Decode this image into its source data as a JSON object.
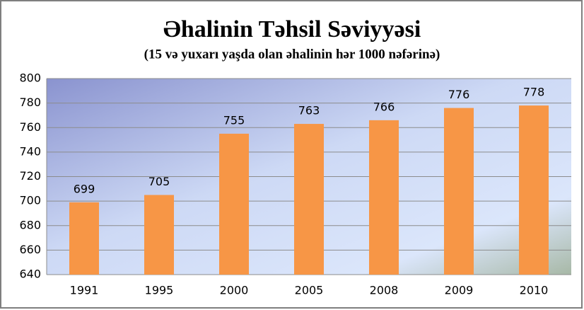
{
  "chart_data": {
    "type": "bar",
    "title": "Əhalinin Təhsil Səviyyəsi",
    "subtitle": "(15 və yuxarı yaşda olan əhalinin hər 1000 nəfərinə)",
    "categories": [
      "1991",
      "1995",
      "2000",
      "2005",
      "2008",
      "2009",
      "2010"
    ],
    "values": [
      699,
      705,
      755,
      763,
      766,
      776,
      778
    ],
    "color": "#f79646",
    "ylim": [
      640,
      800
    ],
    "yticks": [
      640,
      660,
      680,
      700,
      720,
      740,
      760,
      780,
      800
    ],
    "grid": true
  }
}
